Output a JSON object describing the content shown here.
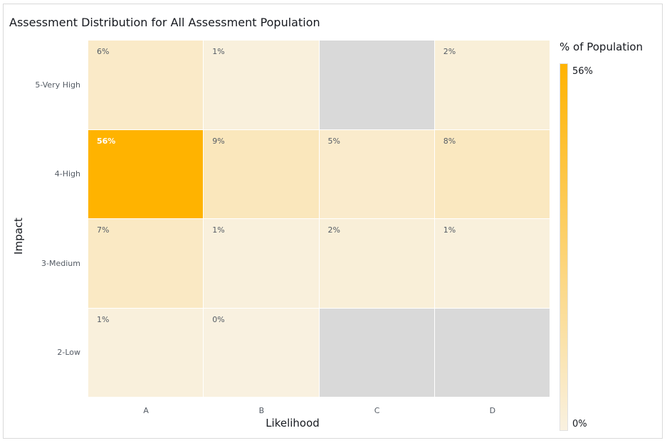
{
  "chart_data": {
    "type": "heatmap",
    "title": "Assessment Distribution for All Assessment Population",
    "xlabel": "Likelihood",
    "ylabel": "Impact",
    "x_categories": [
      "A",
      "B",
      "C",
      "D"
    ],
    "y_categories": [
      "5-Very High",
      "4-High",
      "3-Medium",
      "2-Low"
    ],
    "values": [
      [
        6,
        1,
        null,
        2
      ],
      [
        56,
        9,
        5,
        8
      ],
      [
        7,
        1,
        2,
        1
      ],
      [
        1,
        0,
        null,
        null
      ]
    ],
    "cell_labels": [
      [
        "6%",
        "1%",
        "",
        "2%"
      ],
      [
        "56%",
        "9%",
        "5%",
        "8%"
      ],
      [
        "7%",
        "1%",
        "2%",
        "1%"
      ],
      [
        "1%",
        "0%",
        "",
        ""
      ]
    ],
    "legend": {
      "title": "% of Population",
      "max_label": "56%",
      "min_label": "0%",
      "range": [
        0,
        56
      ],
      "placement": "right"
    },
    "colors": {
      "low": "#f9f1e0",
      "high": "#ffb300",
      "empty": "#d9d9d9"
    }
  }
}
